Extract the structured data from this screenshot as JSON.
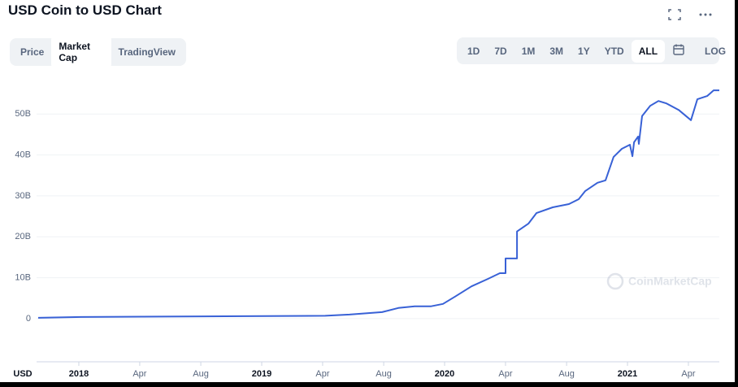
{
  "chart_data": {
    "type": "line",
    "title": "USD Coin to USD Chart",
    "unit_label": "USD",
    "x": [
      2017.778,
      2018.013,
      2018.458,
      2018.902,
      2019.347,
      2019.48,
      2019.658,
      2019.747,
      2019.836,
      2019.924,
      2019.991,
      2020.058,
      2020.147,
      2020.236,
      2020.302,
      2020.333,
      2020.333,
      2020.396,
      2020.396,
      2020.458,
      2020.502,
      2020.591,
      2020.68,
      2020.733,
      2020.769,
      2020.836,
      2020.88,
      2020.924,
      2020.969,
      2021.013,
      2021.027,
      2021.036,
      2021.058,
      2021.062,
      2021.08,
      2021.124,
      2021.169,
      2021.213,
      2021.28,
      2021.347,
      2021.382,
      2021.436,
      2021.471,
      2021.502
    ],
    "values": [
      0.2,
      0.4,
      0.5,
      0.6,
      0.7,
      1.0,
      1.6,
      2.6,
      3.0,
      3.0,
      3.6,
      5.4,
      7.9,
      9.7,
      11.1,
      11.1,
      14.7,
      14.7,
      21.3,
      23.2,
      25.8,
      27.2,
      28.0,
      29.2,
      31.2,
      33.2,
      33.8,
      39.5,
      41.5,
      42.5,
      39.7,
      43.1,
      44.5,
      42.7,
      49.5,
      52.0,
      53.2,
      52.6,
      51.0,
      48.5,
      53.6,
      54.4,
      55.8,
      55.8
    ],
    "color": "#3861d6",
    "xlim": [
      2017.769,
      2021.502
    ],
    "xticks": [
      2018,
      {
        "value": 2018.333,
        "label": "Apr"
      },
      {
        "value": 2018.667,
        "label": "Aug"
      },
      2019,
      {
        "value": 2019.333,
        "label": "Apr"
      },
      {
        "value": 2019.667,
        "label": "Aug"
      },
      2020,
      {
        "value": 2020.333,
        "label": "Apr"
      },
      {
        "value": 2020.667,
        "label": "Aug"
      },
      2021,
      {
        "value": 2021.333,
        "label": "Apr"
      }
    ],
    "ylim": [
      -2.6,
      58
    ],
    "yticks": [
      0,
      {
        "value": 10,
        "label": "10B"
      },
      {
        "value": 20,
        "label": "20B"
      },
      {
        "value": 30,
        "label": "30B"
      },
      {
        "value": 40,
        "label": "40B"
      },
      {
        "value": 50,
        "label": "50B"
      }
    ],
    "grid": true
  },
  "ui": {
    "tabs": [
      "Price",
      "Market Cap",
      "TradingView"
    ],
    "tab_selected": 1,
    "ranges": [
      "1D",
      "7D",
      "1M",
      "3M",
      "1Y",
      "YTD",
      "ALL"
    ],
    "range_selected": 6,
    "log": "LOG",
    "watermark": "CoinMarketCap"
  }
}
